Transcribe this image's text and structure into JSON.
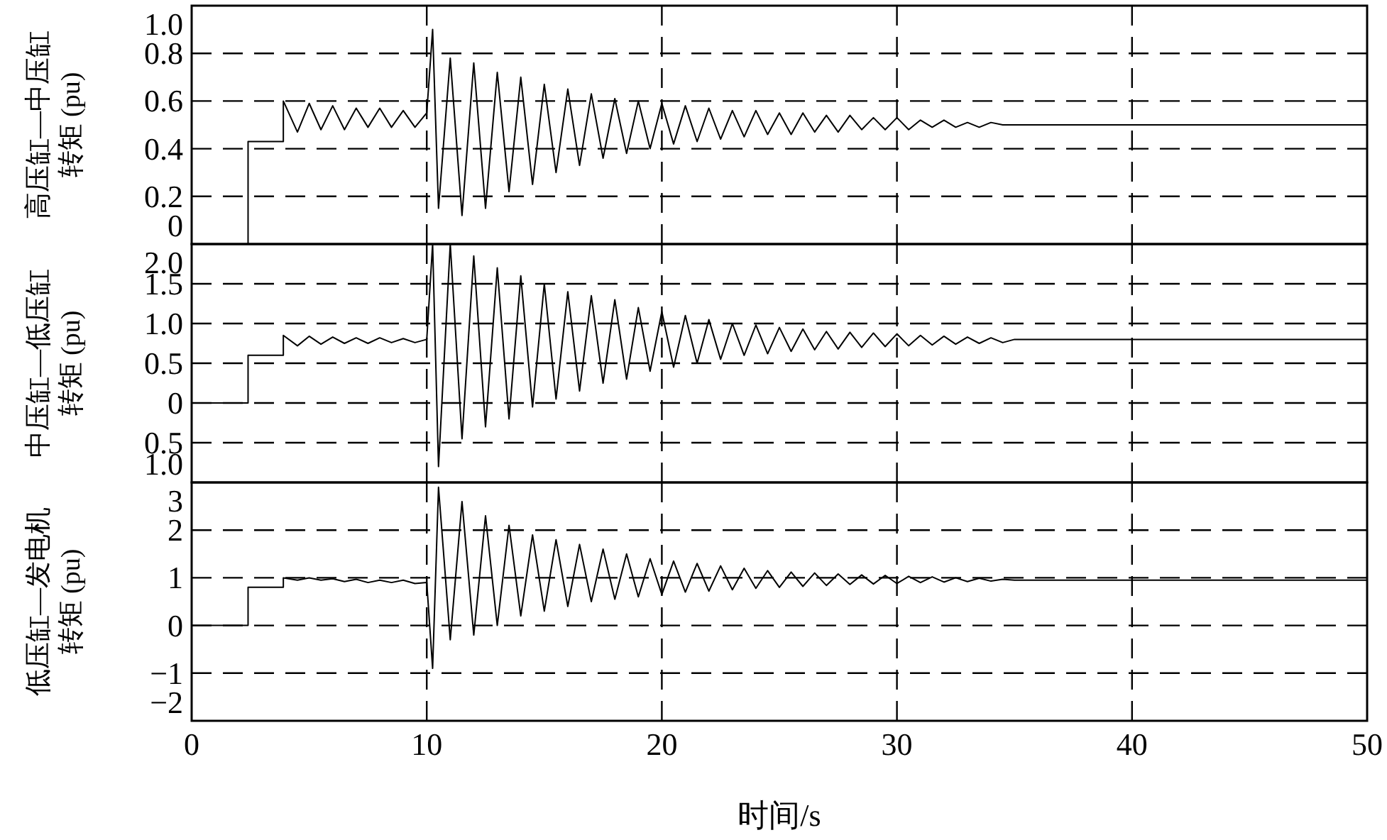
{
  "chart_data": [
    {
      "type": "line",
      "ylabel": "高压缸—中压缸转矩 (pu)",
      "xlim": [
        0,
        50
      ],
      "xticks": [
        0,
        10,
        20,
        30,
        40,
        50
      ],
      "ylim": [
        0,
        1.0
      ],
      "yticks": [
        0,
        {
          "value": 0.2,
          "label": "0.2"
        },
        {
          "value": 0.4,
          "label": "0.4"
        },
        {
          "value": 0.6,
          "label": "0.6"
        },
        {
          "value": 0.8,
          "label": "0.8"
        },
        {
          "value": 1.0,
          "label": "1.0"
        }
      ],
      "grid": true,
      "line_style": "solid",
      "tick_labels": "y",
      "x": [
        0,
        2.4,
        2.4,
        3.9,
        3.9,
        4.5,
        5,
        5.5,
        6,
        6.5,
        7,
        7.5,
        8,
        8.5,
        9,
        9.5,
        10,
        10.25,
        10.5,
        11,
        11.5,
        12,
        12.5,
        13,
        13.5,
        14,
        14.5,
        15,
        15.5,
        16,
        16.5,
        17,
        17.5,
        18,
        18.5,
        19,
        19.5,
        20,
        20.5,
        21,
        21.5,
        22,
        22.5,
        23,
        23.5,
        24,
        24.5,
        25,
        25.5,
        26,
        26.5,
        27,
        27.5,
        28,
        28.5,
        29,
        29.5,
        30,
        30.5,
        31,
        31.5,
        32,
        32.5,
        33,
        33.5,
        34,
        34.5,
        35,
        50
      ],
      "series": [
        {
          "color": "#000000",
          "values": [
            0,
            0,
            0.43,
            0.43,
            0.6,
            0.47,
            0.59,
            0.48,
            0.58,
            0.48,
            0.57,
            0.49,
            0.57,
            0.49,
            0.56,
            0.49,
            0.55,
            0.9,
            0.15,
            0.78,
            0.12,
            0.76,
            0.15,
            0.72,
            0.22,
            0.7,
            0.25,
            0.67,
            0.3,
            0.65,
            0.33,
            0.63,
            0.36,
            0.61,
            0.38,
            0.6,
            0.4,
            0.59,
            0.42,
            0.58,
            0.43,
            0.57,
            0.44,
            0.56,
            0.45,
            0.56,
            0.46,
            0.55,
            0.46,
            0.55,
            0.47,
            0.54,
            0.47,
            0.54,
            0.48,
            0.53,
            0.48,
            0.53,
            0.48,
            0.52,
            0.49,
            0.52,
            0.49,
            0.51,
            0.49,
            0.51,
            0.5,
            0.5,
            0.5
          ]
        }
      ]
    },
    {
      "type": "line",
      "ylabel": "中压缸—低压缸转矩 (pu)",
      "xlim": [
        0,
        50
      ],
      "xticks": [
        0,
        10,
        20,
        30,
        40,
        50
      ],
      "ylim": [
        -1.0,
        2.0
      ],
      "yticks": [
        {
          "value": -1.0,
          "label": "1.0"
        },
        {
          "value": -0.5,
          "label": "0.5"
        },
        0,
        {
          "value": 0.5,
          "label": "0.5"
        },
        {
          "value": 1.0,
          "label": "1.0"
        },
        {
          "value": 1.5,
          "label": "1.5"
        },
        {
          "value": 2.0,
          "label": "2.0"
        }
      ],
      "grid": true,
      "line_style": "solid",
      "tick_labels": "y",
      "x": [
        0,
        2.4,
        2.4,
        3.9,
        3.9,
        4.5,
        5,
        5.5,
        6,
        6.5,
        7,
        7.5,
        8,
        8.5,
        9,
        9.5,
        10,
        10.25,
        10.5,
        11,
        11.5,
        12,
        12.5,
        13,
        13.5,
        14,
        14.5,
        15,
        15.5,
        16,
        16.5,
        17,
        17.5,
        18,
        18.5,
        19,
        19.5,
        20,
        20.5,
        21,
        21.5,
        22,
        22.5,
        23,
        23.5,
        24,
        24.5,
        25,
        25.5,
        26,
        26.5,
        27,
        27.5,
        28,
        28.5,
        29,
        29.5,
        30,
        30.5,
        31,
        31.5,
        32,
        32.5,
        33,
        33.5,
        34,
        34.5,
        35,
        50
      ],
      "series": [
        {
          "color": "#000000",
          "values": [
            0,
            0,
            0.6,
            0.6,
            0.85,
            0.72,
            0.84,
            0.74,
            0.83,
            0.75,
            0.82,
            0.75,
            0.82,
            0.76,
            0.81,
            0.76,
            0.8,
            2.0,
            -0.8,
            2.0,
            -0.45,
            1.85,
            -0.3,
            1.7,
            -0.2,
            1.6,
            -0.05,
            1.5,
            0.05,
            1.4,
            0.15,
            1.35,
            0.25,
            1.3,
            0.3,
            1.2,
            0.4,
            1.15,
            0.45,
            1.1,
            0.5,
            1.05,
            0.55,
            1.0,
            0.6,
            0.98,
            0.62,
            0.95,
            0.65,
            0.93,
            0.67,
            0.9,
            0.68,
            0.89,
            0.7,
            0.88,
            0.71,
            0.87,
            0.72,
            0.85,
            0.73,
            0.84,
            0.74,
            0.83,
            0.75,
            0.82,
            0.76,
            0.8,
            0.8
          ]
        }
      ]
    },
    {
      "type": "line",
      "ylabel": "低压缸—发电机转矩 (pu)",
      "xlabel": "时间/s",
      "xlim": [
        0,
        50
      ],
      "xticks": [
        0,
        10,
        20,
        30,
        40,
        50
      ],
      "ylim": [
        -2,
        3
      ],
      "yticks": [
        {
          "value": -2,
          "label": "−2"
        },
        {
          "value": -1,
          "label": "−1"
        },
        0,
        1,
        2,
        3
      ],
      "grid": true,
      "line_style": "solid",
      "x": [
        0,
        2.4,
        2.4,
        3.9,
        3.9,
        4.5,
        5,
        5.5,
        6,
        6.5,
        7,
        7.5,
        8,
        8.5,
        9,
        9.5,
        10,
        10.25,
        10.5,
        11,
        11.5,
        12,
        12.5,
        13,
        13.5,
        14,
        14.5,
        15,
        15.5,
        16,
        16.5,
        17,
        17.5,
        18,
        18.5,
        19,
        19.5,
        20,
        20.5,
        21,
        21.5,
        22,
        22.5,
        23,
        23.5,
        24,
        24.5,
        25,
        25.5,
        26,
        26.5,
        27,
        27.5,
        28,
        28.5,
        29,
        29.5,
        30,
        30.5,
        31,
        31.5,
        32,
        32.5,
        33,
        33.5,
        34,
        34.5,
        35,
        50
      ],
      "series": [
        {
          "color": "#000000",
          "values": [
            0,
            0,
            0.8,
            0.8,
            1.0,
            0.95,
            1.0,
            0.95,
            0.98,
            0.92,
            0.97,
            0.9,
            0.95,
            0.9,
            0.95,
            0.88,
            0.9,
            -0.9,
            2.9,
            -0.3,
            2.6,
            -0.2,
            2.3,
            0.0,
            2.1,
            0.2,
            1.9,
            0.3,
            1.8,
            0.4,
            1.7,
            0.5,
            1.6,
            0.55,
            1.5,
            0.6,
            1.4,
            0.65,
            1.35,
            0.7,
            1.3,
            0.72,
            1.25,
            0.75,
            1.2,
            0.78,
            1.15,
            0.8,
            1.12,
            0.82,
            1.1,
            0.84,
            1.08,
            0.86,
            1.06,
            0.87,
            1.05,
            0.88,
            1.03,
            0.9,
            1.02,
            0.91,
            1.0,
            0.92,
            0.99,
            0.93,
            0.97,
            0.95,
            0.95
          ]
        }
      ]
    }
  ]
}
